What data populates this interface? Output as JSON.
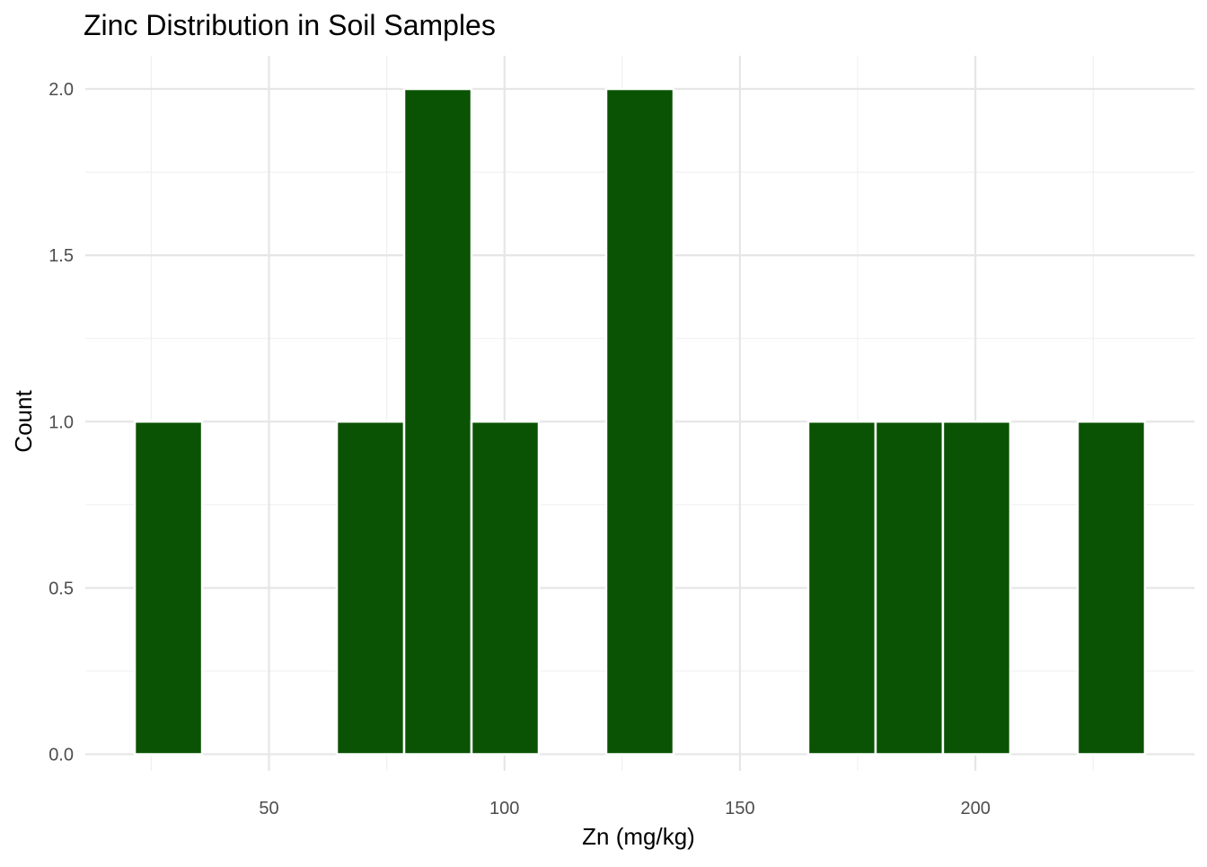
{
  "chart_data": {
    "type": "bar",
    "title": "Zinc Distribution in Soil Samples",
    "xlabel": "Zn (mg/kg)",
    "ylabel": "Count",
    "bin_width": 14.3,
    "bins": [
      {
        "start": 21.5,
        "end": 35.8,
        "count": 1
      },
      {
        "start": 64.4,
        "end": 78.7,
        "count": 1
      },
      {
        "start": 78.7,
        "end": 93.0,
        "count": 2
      },
      {
        "start": 93.0,
        "end": 107.3,
        "count": 1
      },
      {
        "start": 121.6,
        "end": 135.9,
        "count": 2
      },
      {
        "start": 164.5,
        "end": 178.8,
        "count": 1
      },
      {
        "start": 178.8,
        "end": 193.1,
        "count": 1
      },
      {
        "start": 193.1,
        "end": 207.4,
        "count": 1
      },
      {
        "start": 221.7,
        "end": 236.0,
        "count": 1
      }
    ],
    "xlim": [
      11.0,
      246.5
    ],
    "ylim": [
      -0.05,
      2.1
    ],
    "x_ticks": [
      50,
      100,
      150,
      200
    ],
    "x_tick_labels": [
      "50",
      "100",
      "150",
      "200"
    ],
    "y_ticks": [
      0.0,
      0.5,
      1.0,
      1.5,
      2.0
    ],
    "y_tick_labels": [
      "0.0",
      "0.5",
      "1.0",
      "1.5",
      "2.0"
    ],
    "grid": true,
    "colors": {
      "bar_fill": "#0b5304",
      "bar_border": "#ffffff",
      "grid_major": "#e6e6e6",
      "grid_minor": "#f0f0f0",
      "tick_text": "#4d4d4d"
    }
  }
}
